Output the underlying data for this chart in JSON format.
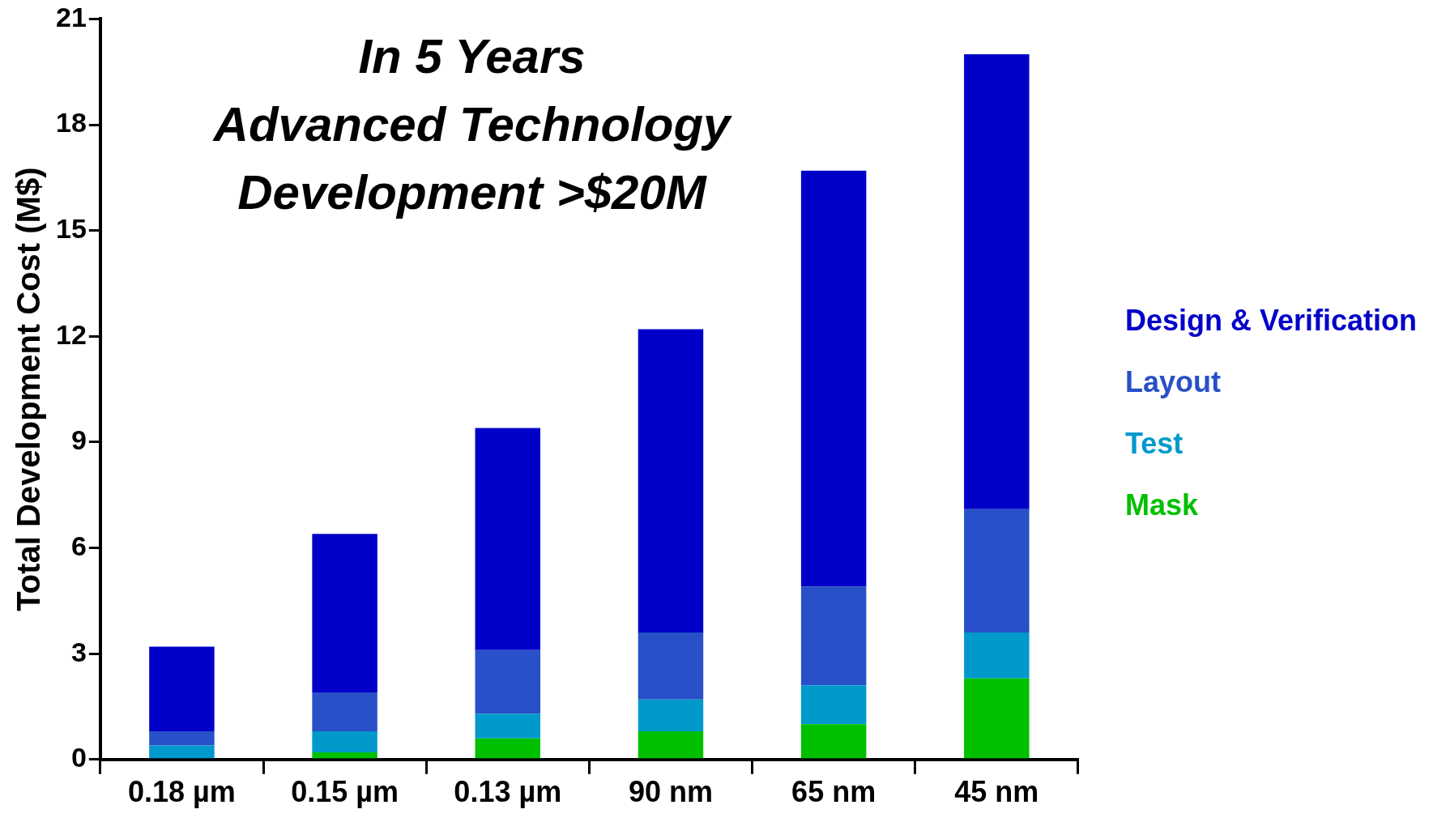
{
  "chart_data": {
    "type": "bar",
    "title": "In 5 Years\nAdvanced Technology\nDevelopment >$20M",
    "ylabel": "Total Development Cost (M$)",
    "categories": [
      "0.18 µm",
      "0.15 µm",
      "0.13 µm",
      "90 nm",
      "65 nm",
      "45 nm"
    ],
    "stacked": true,
    "ylim": [
      0,
      21
    ],
    "yticks": [
      0,
      3,
      6,
      9,
      12,
      15,
      18,
      21
    ],
    "grid": false,
    "legend": "right",
    "series": [
      {
        "name": "Mask",
        "color": "#00c000",
        "values": [
          0.0,
          0.2,
          0.6,
          0.8,
          1.0,
          2.3
        ]
      },
      {
        "name": "Test",
        "color": "#0099cc",
        "values": [
          0.4,
          0.6,
          0.7,
          0.9,
          1.1,
          1.3
        ]
      },
      {
        "name": "Layout",
        "color": "#2850c8",
        "values": [
          0.4,
          1.1,
          1.8,
          1.9,
          2.8,
          3.5
        ]
      },
      {
        "name": "Design & Verification",
        "color": "#0000c8",
        "values": [
          2.4,
          4.5,
          6.3,
          8.6,
          11.8,
          12.9
        ]
      }
    ]
  }
}
